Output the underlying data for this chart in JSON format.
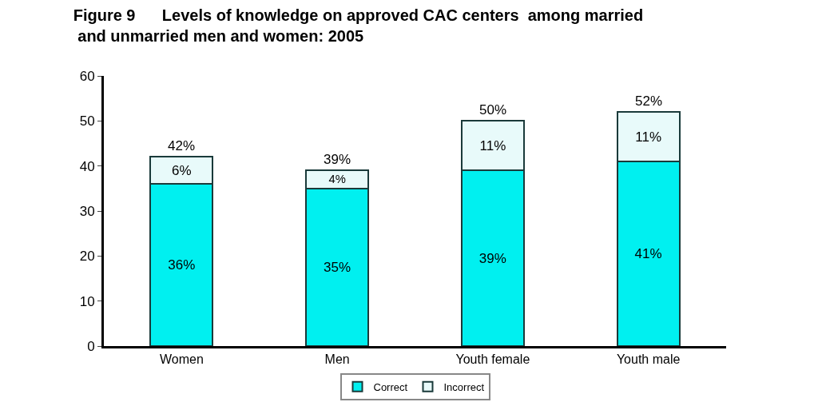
{
  "chart_data": {
    "type": "bar",
    "title": "Figure 9      Levels of knowledge on approved CAC centers  among married and unmarried men and women: 2005",
    "categories": [
      "Women",
      "Men",
      "Youth female",
      "Youth male"
    ],
    "stacked": true,
    "series": [
      {
        "name": "Correct",
        "color": "#00f0f0",
        "values": [
          36,
          35,
          39,
          41
        ],
        "value_labels": [
          "36%",
          "35%",
          "39%",
          "41%"
        ]
      },
      {
        "name": "Incorrect",
        "color": "#e8fafa",
        "values": [
          6,
          4,
          11,
          11
        ],
        "value_labels": [
          "6%",
          "4%",
          "11%",
          "11%"
        ]
      }
    ],
    "totals": [
      "42%",
      "39%",
      "50%",
      "52%"
    ],
    "ylim": [
      0,
      60
    ],
    "yticks": [
      0,
      10,
      20,
      30,
      40,
      50,
      60
    ],
    "legend": "bottom"
  }
}
